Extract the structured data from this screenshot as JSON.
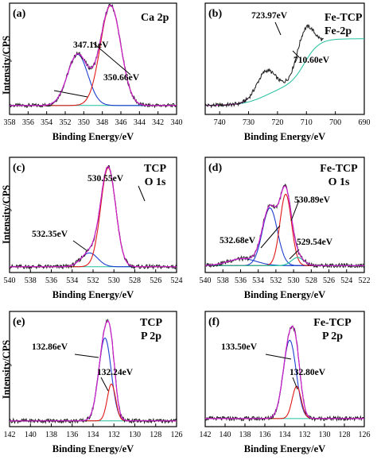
{
  "colors": {
    "raw": "#1a1a1a",
    "envelope": "#d020d0",
    "baseline": "#20c0a0",
    "peak_red": "#e01818",
    "peak_blue": "#1f3fd0",
    "axis": "#000000"
  },
  "chart_data": [
    {
      "type": "line",
      "panel_label": "(a)",
      "legend": [
        "Ca 2p"
      ],
      "xlabel": "Binding Energy/eV",
      "ylabel": "Intensity/CPS",
      "xlim": [
        358,
        340
      ],
      "x_ticks": [
        358,
        356,
        354,
        352,
        350,
        348,
        346,
        344,
        342,
        340
      ],
      "baseline": 0.08,
      "peaks": [
        {
          "center": 350.66,
          "amplitude": 0.46,
          "width": 1.1,
          "color": "peak_blue"
        },
        {
          "center": 347.11,
          "amplitude": 0.9,
          "width": 1.1,
          "color": "peak_red"
        }
      ],
      "annotations": [
        {
          "text": "347.11eV",
          "x": 347.11
        },
        {
          "text": "350.66eV",
          "x": 350.66
        }
      ]
    },
    {
      "type": "line",
      "panel_label": "(b)",
      "legend": [
        "Fe-TCP",
        "Fe-2p"
      ],
      "xlabel": "Binding Energy/eV",
      "ylabel": "",
      "xlim": [
        745,
        690
      ],
      "x_ticks": [
        740,
        730,
        720,
        710,
        700,
        690
      ],
      "baseline_steps": [
        {
          "center": 723.97,
          "height": 0.18,
          "width": 4
        },
        {
          "center": 710.6,
          "height": 0.42,
          "width": 2.5
        }
      ],
      "baseline_floor": 0.08,
      "peaks": [
        {
          "center": 723.97,
          "amplitude": 0.22,
          "width": 3.2
        },
        {
          "center": 710.6,
          "amplitude": 0.3,
          "width": 2.8
        }
      ],
      "data_end": 704,
      "annotations": [
        {
          "text": "723.97eV",
          "x": 723.97
        },
        {
          "text": "710.60eV",
          "x": 710.6
        }
      ]
    },
    {
      "type": "line",
      "panel_label": "(c)",
      "legend": [
        "TCP",
        "O 1s"
      ],
      "xlabel": "Binding Energy/eV",
      "ylabel": "Intensity/CPS",
      "xlim": [
        540,
        524
      ],
      "x_ticks": [
        540,
        538,
        536,
        534,
        532,
        530,
        528,
        526,
        524
      ],
      "baseline": 0.05,
      "peaks": [
        {
          "center": 532.35,
          "amplitude": 0.12,
          "width": 0.8,
          "color": "peak_blue"
        },
        {
          "center": 530.55,
          "amplitude": 0.86,
          "width": 0.72,
          "color": "peak_red"
        }
      ],
      "annotations": [
        {
          "text": "530.55eV",
          "x": 530.55
        },
        {
          "text": "532.35eV",
          "x": 532.35
        }
      ]
    },
    {
      "type": "line",
      "panel_label": "(d)",
      "legend": [
        "Fe-TCP",
        "O 1s"
      ],
      "xlabel": "Binding Energy/eV",
      "ylabel": "",
      "xlim": [
        540,
        522
      ],
      "x_ticks": [
        540,
        538,
        536,
        534,
        532,
        530,
        528,
        526,
        524,
        522
      ],
      "baseline": 0.06,
      "peaks": [
        {
          "center": 535.8,
          "amplitude": 0.06,
          "width": 1.6,
          "color": "peak_blue"
        },
        {
          "center": 532.68,
          "amplitude": 0.5,
          "width": 0.85,
          "color": "peak_blue"
        },
        {
          "center": 530.89,
          "amplitude": 0.62,
          "width": 0.65,
          "color": "peak_red"
        },
        {
          "center": 529.54,
          "amplitude": 0.07,
          "width": 0.7,
          "color": "baseline"
        }
      ],
      "annotations": [
        {
          "text": "532.68eV",
          "x": 532.68
        },
        {
          "text": "530.89eV",
          "x": 530.89
        },
        {
          "text": "529.54eV",
          "x": 529.54
        }
      ]
    },
    {
      "type": "line",
      "panel_label": "(e)",
      "legend": [
        "TCP",
        "P 2p"
      ],
      "xlabel": "Binding Energy/eV",
      "ylabel": "Intensity/CPS",
      "xlim": [
        142,
        126
      ],
      "x_ticks": [
        142,
        140,
        138,
        136,
        134,
        132,
        130,
        128,
        126
      ],
      "baseline": 0.05,
      "peaks": [
        {
          "center": 132.86,
          "amplitude": 0.72,
          "width": 0.6,
          "color": "peak_blue"
        },
        {
          "center": 132.24,
          "amplitude": 0.32,
          "width": 0.4,
          "color": "peak_red"
        }
      ],
      "annotations": [
        {
          "text": "132.86eV",
          "x": 132.86
        },
        {
          "text": "132.24eV",
          "x": 132.24
        }
      ]
    },
    {
      "type": "line",
      "panel_label": "(f)",
      "legend": [
        "Fe-TCP",
        "P 2p"
      ],
      "xlabel": "Binding Energy/eV",
      "ylabel": "",
      "xlim": [
        142,
        126
      ],
      "x_ticks": [
        142,
        140,
        138,
        136,
        134,
        132,
        130,
        128,
        126
      ],
      "baseline": 0.07,
      "peaks": [
        {
          "center": 133.5,
          "amplitude": 0.68,
          "width": 0.65,
          "color": "peak_blue"
        },
        {
          "center": 132.8,
          "amplitude": 0.28,
          "width": 0.45,
          "color": "peak_red"
        }
      ],
      "annotations": [
        {
          "text": "133.50eV",
          "x": 133.5
        },
        {
          "text": "132.80eV",
          "x": 132.8
        }
      ]
    }
  ]
}
